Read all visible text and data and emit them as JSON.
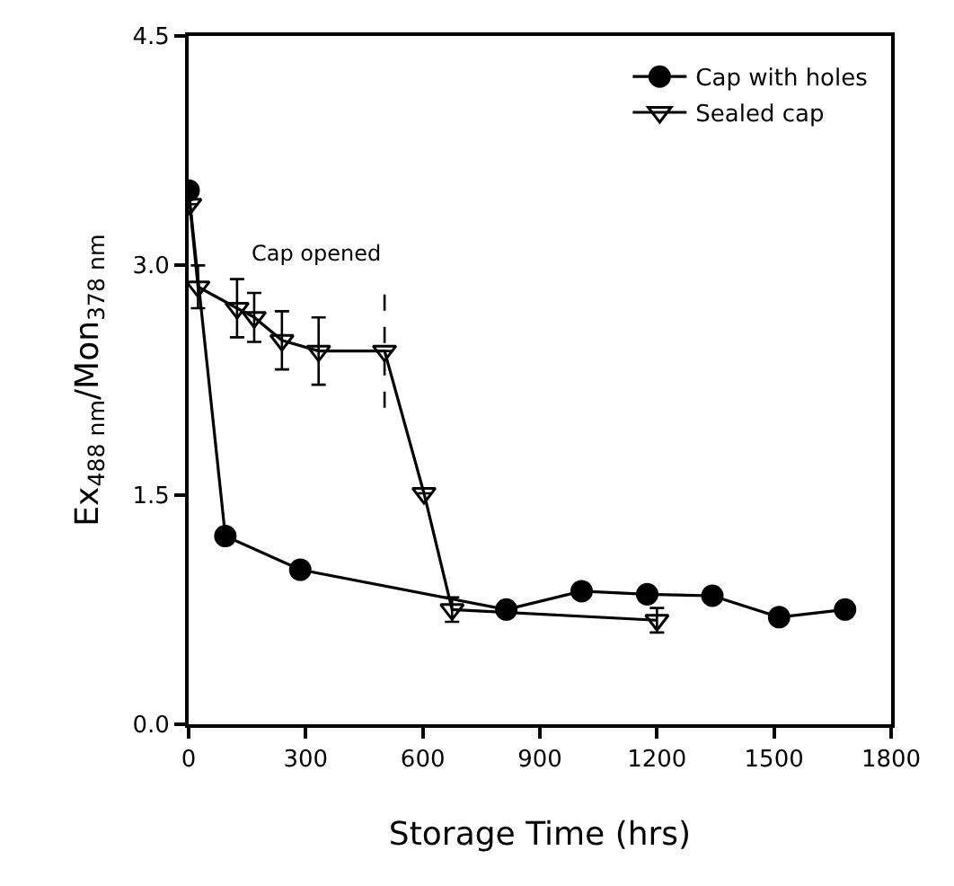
{
  "chart_data": {
    "type": "line",
    "xlabel": "Storage Time (hrs)",
    "ylabel": "Ex$_{488 nm}$/Mon$_{378 nm}$",
    "series": [
      {
        "name": "Cap with holes",
        "color": "#000000",
        "marker": "circle",
        "x": [
          0,
          94,
          286,
          814,
          1007,
          1175,
          1342,
          1513,
          1682
        ],
        "values": [
          3.49,
          1.23,
          1.01,
          0.75,
          0.87,
          0.85,
          0.84,
          0.7,
          0.75
        ]
      },
      {
        "name": "Sealed cap",
        "color": "#000000",
        "marker": "triangle",
        "x": [
          3,
          24,
          124,
          168,
          239,
          333,
          502,
          603,
          675,
          1200
        ],
        "values": [
          3.4,
          2.86,
          2.72,
          2.66,
          2.51,
          2.44,
          2.44,
          1.51,
          0.75,
          0.68
        ],
        "errors": [
          null,
          0.14,
          0.19,
          0.16,
          0.19,
          0.22,
          null,
          null,
          0.08,
          0.08
        ]
      }
    ],
    "ref_lines": [
      {
        "axis": "x",
        "value": 502,
        "label": "Cap opened",
        "line_style": "dashed"
      }
    ],
    "xlim": [
      0,
      1800
    ],
    "xticks": [
      0,
      300,
      600,
      900,
      1200,
      1500,
      1800
    ],
    "ylim": [
      0,
      4.5
    ],
    "yticks": [
      {
        "value": 0,
        "label": "0.0"
      },
      {
        "value": 1.5,
        "label": "1.5"
      },
      {
        "value": 3,
        "label": "3.0"
      },
      {
        "value": 4.5,
        "label": "4.5"
      }
    ],
    "legend": "top right",
    "line_style": "solid"
  }
}
